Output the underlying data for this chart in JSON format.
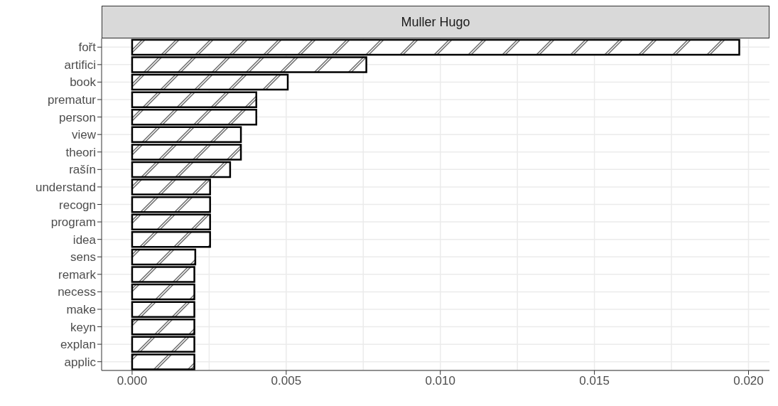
{
  "chart_data": {
    "type": "bar",
    "orientation": "horizontal",
    "title": "Muller Hugo",
    "categories": [
      "fořt",
      "artifici",
      "book",
      "prematur",
      "person",
      "view",
      "theori",
      "rašín",
      "understand",
      "recogn",
      "program",
      "idea",
      "sens",
      "remark",
      "necess",
      "make",
      "keyn",
      "explan",
      "applic"
    ],
    "values": [
      0.0197,
      0.0076,
      0.00505,
      0.00403,
      0.00403,
      0.00353,
      0.00353,
      0.00318,
      0.00253,
      0.00253,
      0.00253,
      0.00253,
      0.00205,
      0.00202,
      0.00202,
      0.00202,
      0.00202,
      0.00202,
      0.00202
    ],
    "color": "#000000",
    "xlim": [
      -0.00099,
      0.02068
    ],
    "xticks": [
      {
        "value": 0,
        "label": "0.000"
      },
      {
        "value": 0.005,
        "label": "0.005"
      },
      {
        "value": 0.01,
        "label": "0.010"
      },
      {
        "value": 0.015,
        "label": "0.015"
      },
      {
        "value": 0.02,
        "label": "0.020"
      }
    ],
    "grid": true
  }
}
